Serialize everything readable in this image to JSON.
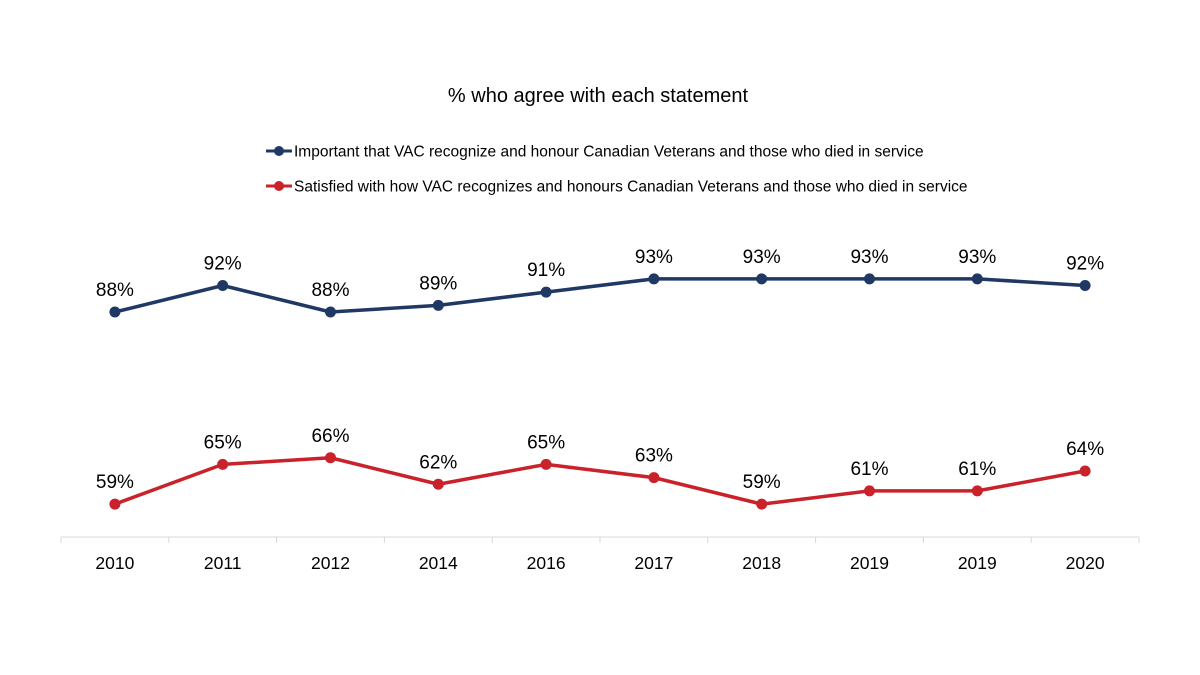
{
  "chart_data": {
    "type": "line",
    "title": "% who agree with each statement",
    "xlabel": "",
    "ylabel": "",
    "categories": [
      "2010",
      "2011",
      "2012",
      "2014",
      "2016",
      "2017",
      "2018",
      "2019",
      "2019",
      "2020"
    ],
    "ylim": [
      50,
      100
    ],
    "grid": false,
    "legend_position": "top",
    "series": [
      {
        "name": "Important that VAC recognize and honour Canadian Veterans and those who died in service",
        "color": "#1f3864",
        "values": [
          88,
          92,
          88,
          89,
          91,
          93,
          93,
          93,
          93,
          92
        ],
        "labels": [
          "88%",
          "92%",
          "88%",
          "89%",
          "91%",
          "93%",
          "93%",
          "93%",
          "93%",
          "92%"
        ]
      },
      {
        "name": "Satisfied with how VAC recognizes and honours Canadian Veterans and those who died in service",
        "color": "#c9222b",
        "values": [
          59,
          65,
          66,
          62,
          65,
          63,
          59,
          61,
          61,
          64
        ],
        "labels": [
          "59%",
          "65%",
          "66%",
          "62%",
          "65%",
          "63%",
          "59%",
          "61%",
          "61%",
          "64%"
        ]
      }
    ]
  }
}
